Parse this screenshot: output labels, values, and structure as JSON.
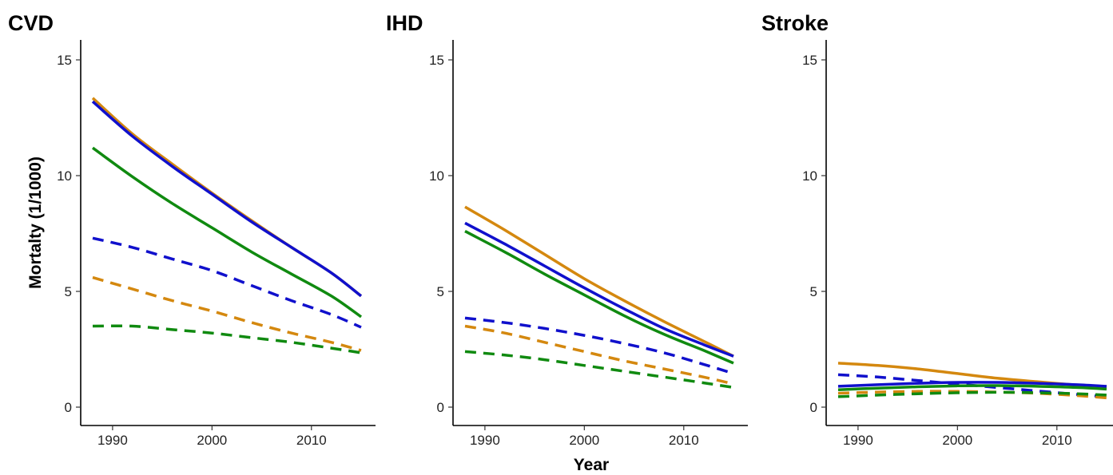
{
  "figure": {
    "ylabel": "Mortalty (1/1000)",
    "xlabel": "Year"
  },
  "colors": {
    "orange": "#D4880F",
    "blue": "#1010CC",
    "green": "#108A10"
  },
  "chart_data": [
    {
      "type": "line",
      "title": "CVD",
      "xlim": [
        1986,
        2016
      ],
      "ylim": [
        -0.8,
        15.8
      ],
      "xticks": [
        1990,
        2000,
        2010
      ],
      "yticks": [
        0,
        5,
        10,
        15
      ],
      "x": [
        1988,
        1992,
        1996,
        2000,
        2004,
        2008,
        2012,
        2015
      ],
      "series": [
        {
          "color": "orange",
          "dash": "solid",
          "values": [
            13.35,
            11.8,
            10.5,
            9.25,
            8.05,
            6.9,
            5.8,
            4.8
          ]
        },
        {
          "color": "blue",
          "dash": "solid",
          "values": [
            13.2,
            11.7,
            10.4,
            9.2,
            8.0,
            6.9,
            5.8,
            4.8
          ]
        },
        {
          "color": "green",
          "dash": "solid",
          "values": [
            11.2,
            9.95,
            8.8,
            7.75,
            6.7,
            5.75,
            4.8,
            3.9
          ]
        },
        {
          "color": "blue",
          "dash": "dashed",
          "values": [
            7.3,
            6.9,
            6.4,
            5.9,
            5.25,
            4.6,
            4.0,
            3.45
          ]
        },
        {
          "color": "orange",
          "dash": "dashed",
          "values": [
            5.6,
            5.1,
            4.6,
            4.15,
            3.65,
            3.2,
            2.8,
            2.45
          ]
        },
        {
          "color": "green",
          "dash": "dashed",
          "values": [
            3.5,
            3.5,
            3.35,
            3.2,
            3.0,
            2.8,
            2.55,
            2.35
          ]
        }
      ]
    },
    {
      "type": "line",
      "title": "IHD",
      "xlim": [
        1986,
        2016
      ],
      "ylim": [
        -0.8,
        15.8
      ],
      "xticks": [
        1990,
        2000,
        2010
      ],
      "yticks": [
        0,
        5,
        10,
        15
      ],
      "x": [
        1988,
        1992,
        1996,
        2000,
        2004,
        2008,
        2012,
        2015
      ],
      "series": [
        {
          "color": "orange",
          "dash": "solid",
          "values": [
            8.65,
            7.65,
            6.6,
            5.55,
            4.6,
            3.7,
            2.85,
            2.2
          ]
        },
        {
          "color": "blue",
          "dash": "solid",
          "values": [
            7.95,
            7.05,
            6.1,
            5.15,
            4.25,
            3.4,
            2.7,
            2.2
          ]
        },
        {
          "color": "green",
          "dash": "solid",
          "values": [
            7.6,
            6.7,
            5.75,
            4.85,
            3.95,
            3.15,
            2.45,
            1.9
          ]
        },
        {
          "color": "blue",
          "dash": "dashed",
          "values": [
            3.85,
            3.65,
            3.4,
            3.1,
            2.75,
            2.35,
            1.85,
            1.45
          ]
        },
        {
          "color": "orange",
          "dash": "dashed",
          "values": [
            3.5,
            3.2,
            2.8,
            2.4,
            2.0,
            1.65,
            1.3,
            1.0
          ]
        },
        {
          "color": "green",
          "dash": "dashed",
          "values": [
            2.4,
            2.25,
            2.05,
            1.8,
            1.55,
            1.3,
            1.05,
            0.85
          ]
        }
      ]
    },
    {
      "type": "line",
      "title": "Stroke",
      "xlim": [
        1986,
        2016
      ],
      "ylim": [
        -0.8,
        15.8
      ],
      "xticks": [
        1990,
        2000,
        2010
      ],
      "yticks": [
        0,
        5,
        10,
        15
      ],
      "x": [
        1988,
        1992,
        1996,
        2000,
        2004,
        2008,
        2012,
        2015
      ],
      "series": [
        {
          "color": "orange",
          "dash": "solid",
          "values": [
            1.9,
            1.8,
            1.65,
            1.45,
            1.25,
            1.1,
            0.95,
            0.85
          ]
        },
        {
          "color": "blue",
          "dash": "solid",
          "values": [
            0.9,
            0.97,
            1.03,
            1.07,
            1.07,
            1.03,
            0.97,
            0.9
          ]
        },
        {
          "color": "green",
          "dash": "solid",
          "values": [
            0.75,
            0.82,
            0.88,
            0.92,
            0.93,
            0.9,
            0.85,
            0.78
          ]
        },
        {
          "color": "blue",
          "dash": "dashed",
          "values": [
            1.4,
            1.3,
            1.15,
            1.0,
            0.85,
            0.7,
            0.55,
            0.45
          ]
        },
        {
          "color": "orange",
          "dash": "dashed",
          "values": [
            0.6,
            0.65,
            0.68,
            0.68,
            0.65,
            0.6,
            0.5,
            0.4
          ]
        },
        {
          "color": "green",
          "dash": "dashed",
          "values": [
            0.45,
            0.52,
            0.58,
            0.62,
            0.64,
            0.62,
            0.58,
            0.52
          ]
        }
      ]
    }
  ]
}
